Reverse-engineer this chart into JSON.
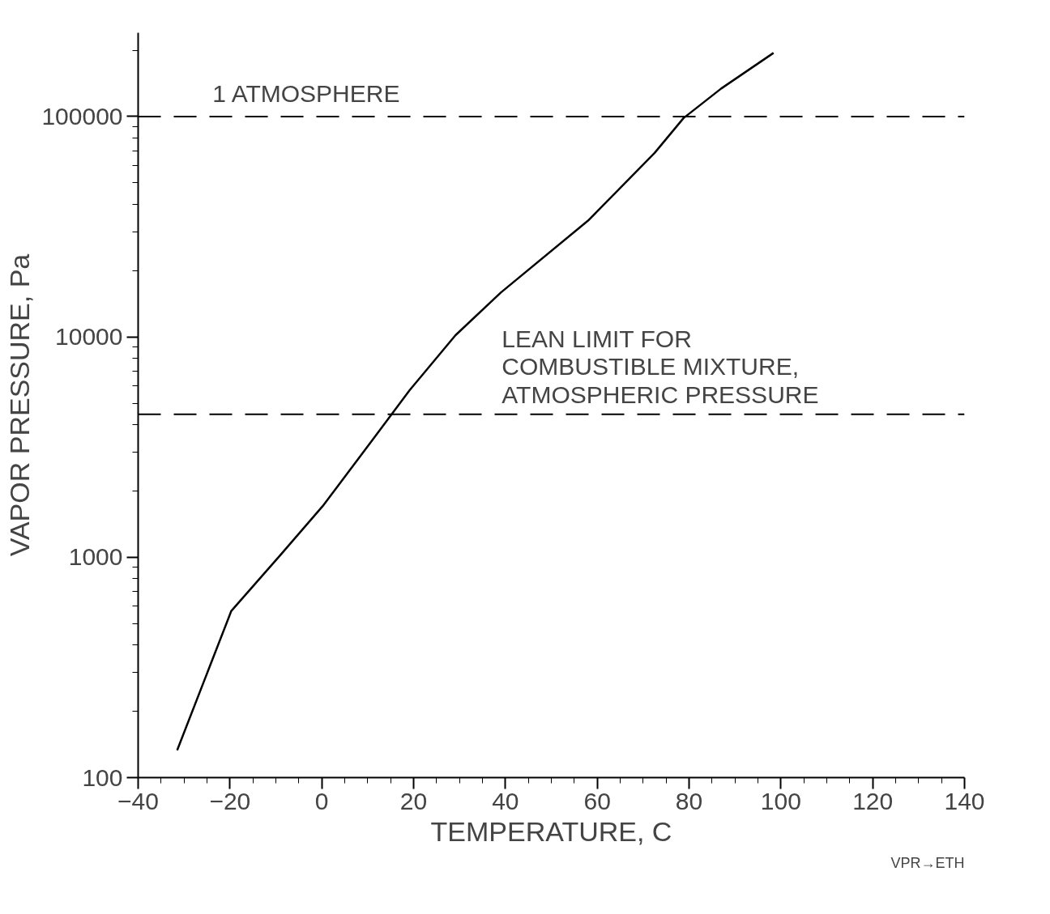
{
  "chart_data": {
    "type": "line",
    "xlabel": "TEMPERATURE, C",
    "ylabel": "VAPOR PRESSURE, Pa",
    "log": "y",
    "grid": false,
    "marker": "none",
    "line_style": "solid",
    "x": [
      -31.5,
      -19.7,
      -8.9,
      0.2,
      11,
      19.2,
      29.1,
      39,
      58,
      72.5,
      78.8,
      87,
      98.4
    ],
    "series": [
      {
        "color": "#000000",
        "values": [
          133,
          571,
          1030,
          1706,
          3400,
          5750,
          10160,
          15900,
          33700,
          68400,
          98400,
          134000,
          194500
        ]
      }
    ],
    "xlim": [
      -40,
      140
    ],
    "xticks": [
      -40,
      -20,
      0,
      20,
      40,
      60,
      80,
      100,
      120,
      140
    ],
    "ylim": [
      100,
      240000
    ],
    "yticks": [
      100,
      1000,
      10000,
      100000
    ],
    "ref_lines": [
      {
        "axis": "y",
        "value": 100000,
        "label": "1 ATMOSPHERE",
        "line_style": "dashed",
        "color": "#000000"
      },
      {
        "axis": "y",
        "value": 4450,
        "label": "LEAN LIMIT FOR\nCOMBUSTIBLE MIXTURE,\nATMOSPHERIC PRESSURE",
        "line_style": "dashed",
        "color": "#000000"
      }
    ],
    "annotations": [
      "VPR→ETH"
    ]
  }
}
